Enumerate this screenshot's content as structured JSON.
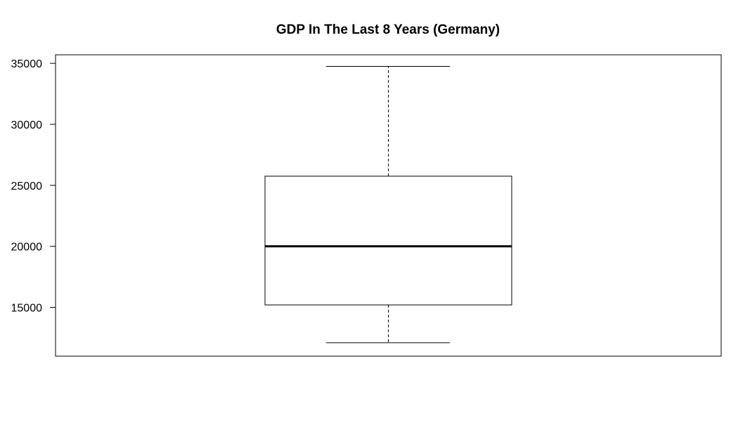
{
  "chart_data": {
    "type": "boxplot",
    "title": "GDP In The Last 8 Years (Germany)",
    "xlabel": "",
    "ylabel": "",
    "ylim": [
      11000,
      35700
    ],
    "yticks": [
      15000,
      20000,
      25000,
      30000,
      35000
    ],
    "ytick_labels": [
      "15000",
      "20000",
      "25000",
      "30000",
      "35000"
    ],
    "box": {
      "min": 12100,
      "q1": 15200,
      "median": 20000,
      "q3": 25750,
      "max": 34750
    },
    "grid": false,
    "legend": "none"
  }
}
